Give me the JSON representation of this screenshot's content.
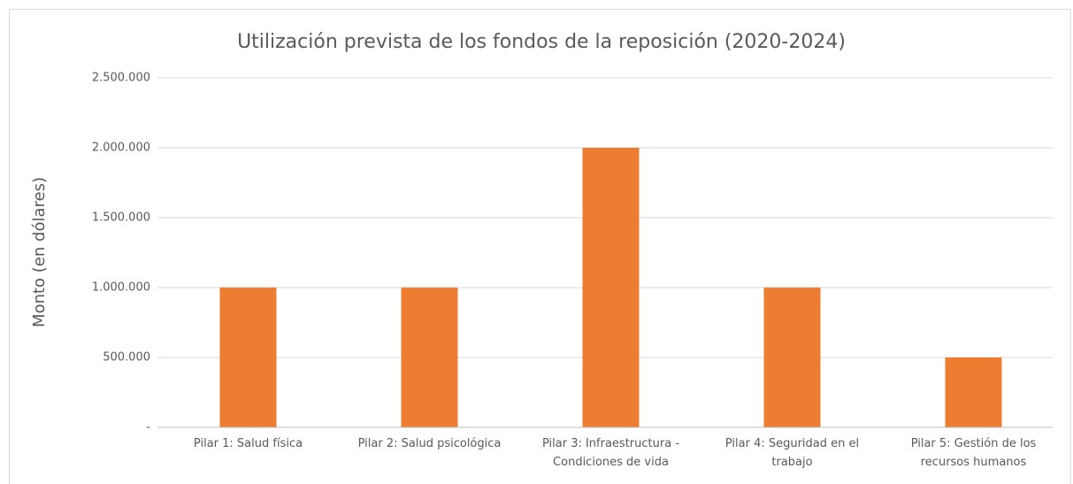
{
  "chart_data": {
    "type": "bar",
    "title": "Utilización prevista de los fondos de la reposición (2020-2024)",
    "y_label": "Monto (en dólares)",
    "categories": [
      "Pilar 1: Salud física",
      "Pilar 2: Salud psicológica",
      "Pilar 3: Infraestructura - Condiciones de vida",
      "Pilar 4: Seguridad en el trabajo",
      "Pilar 5: Gestión de los recursos humanos"
    ],
    "values": [
      1000000,
      1000000,
      2000000,
      1000000,
      500000
    ],
    "color": "#ed7d31",
    "ylim": [
      0,
      2500000
    ],
    "yticks": [
      {
        "value": 0,
        "label": "-"
      },
      {
        "value": 500000,
        "label": "500.000"
      },
      {
        "value": 1000000,
        "label": "1.000.000"
      },
      {
        "value": 1500000,
        "label": "1.500.000"
      },
      {
        "value": 2000000,
        "label": "2.000.000"
      },
      {
        "value": 2500000,
        "label": "2.500.000"
      }
    ],
    "grid": true
  }
}
